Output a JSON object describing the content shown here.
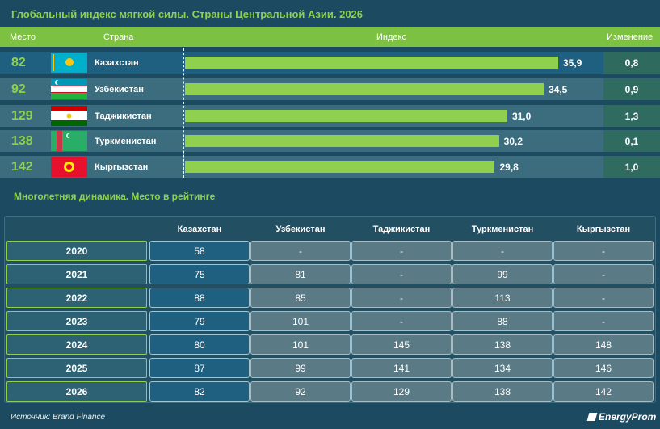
{
  "title": "Глобальный индекс мягкой силы. Страны Центральной Азии. 2026",
  "header": {
    "rank": "Место",
    "country": "Страна",
    "index": "Индекс",
    "change": "Изменение"
  },
  "chart_data": {
    "type": "bar",
    "title": "Глобальный индекс мягкой силы. Страны Центральной Азии. 2026",
    "categories": [
      "Казахстан",
      "Узбекистан",
      "Таджикистан",
      "Туркменистан",
      "Кыргызстан"
    ],
    "ranks": [
      "82",
      "92",
      "129",
      "138",
      "142"
    ],
    "values": [
      35.9,
      34.5,
      31.0,
      30.2,
      29.8
    ],
    "value_labels": [
      "35,9",
      "34,5",
      "31,0",
      "30,2",
      "29,8"
    ],
    "changes": [
      "0,8",
      "0,9",
      "1,3",
      "0,1",
      "1,0"
    ],
    "xlim": [
      0,
      38
    ]
  },
  "rows_meta": [
    {
      "flag_icon": "kazakhstan-flag-icon",
      "row_color": "#1f5f80",
      "change_color": "#2e6a5e"
    },
    {
      "flag_icon": "uzbekistan-flag-icon",
      "row_color": "#3b6d7e",
      "change_color": "#2f6c5f"
    },
    {
      "flag_icon": "tajikistan-flag-icon",
      "row_color": "#3b6d7e",
      "change_color": "#2f6c5f"
    },
    {
      "flag_icon": "turkmenistan-flag-icon",
      "row_color": "#3b6d7e",
      "change_color": "#2f6c5f"
    },
    {
      "flag_icon": "kyrgyzstan-flag-icon",
      "row_color": "#3b6d7e",
      "change_color": "#2f6c5f"
    }
  ],
  "colors": {
    "accent_green": "#8fd14f",
    "header_green": "#7cc142",
    "background": "#1c4a60"
  },
  "dynamics": {
    "title": "Многолетняя динамика. Место в рейтинге",
    "columns": [
      "Казахстан",
      "Узбекистан",
      "Таджикистан",
      "Туркменистан",
      "Кыргызстан"
    ],
    "rows": [
      {
        "year": "2020",
        "values": [
          "58",
          "-",
          "-",
          "-",
          "-"
        ]
      },
      {
        "year": "2021",
        "values": [
          "75",
          "81",
          "-",
          "99",
          "-"
        ]
      },
      {
        "year": "2022",
        "values": [
          "88",
          "85",
          "-",
          "113",
          "-"
        ]
      },
      {
        "year": "2023",
        "values": [
          "79",
          "101",
          "-",
          "88",
          "-"
        ]
      },
      {
        "year": "2024",
        "values": [
          "80",
          "101",
          "145",
          "138",
          "148"
        ]
      },
      {
        "year": "2025",
        "values": [
          "87",
          "99",
          "141",
          "134",
          "146"
        ]
      },
      {
        "year": "2026",
        "values": [
          "82",
          "92",
          "129",
          "138",
          "142"
        ]
      }
    ]
  },
  "source": "Источник: Brand Finance",
  "logo": "EnergyProm",
  "logo_icon": "energyprom-logo-icon"
}
